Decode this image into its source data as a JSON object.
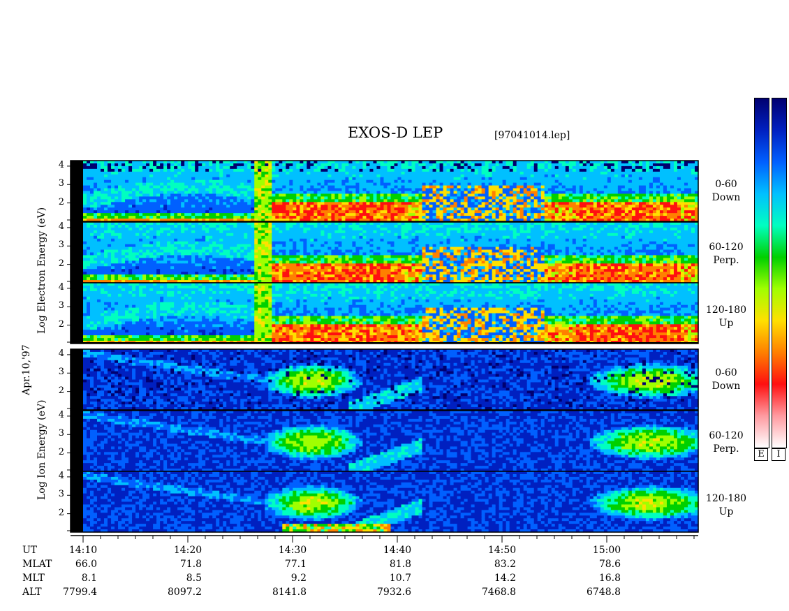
{
  "chart_data": {
    "type": "heatmap",
    "title": "EXOS-D LEP",
    "file_label": "[97041014.lep]",
    "date_label": "Apr.10,'97",
    "electron_ylabel": [
      "Log",
      "Electron",
      "Energy",
      "(eV)"
    ],
    "ion_ylabel": [
      "Log",
      "Ion",
      "Energy",
      "(eV)"
    ],
    "y_ticks": [
      "4",
      "3",
      "2"
    ],
    "ylim": [
      1,
      4.3
    ],
    "panels": [
      {
        "species": "Electron",
        "angle": "0-60",
        "dir": "Down"
      },
      {
        "species": "Electron",
        "angle": "60-120",
        "dir": "Perp."
      },
      {
        "species": "Electron",
        "angle": "120-180",
        "dir": "Up"
      },
      {
        "species": "Ion",
        "angle": "0-60",
        "dir": "Down"
      },
      {
        "species": "Ion",
        "angle": "60-120",
        "dir": "Perp."
      },
      {
        "species": "Ion",
        "angle": "120-180",
        "dir": "Up"
      }
    ],
    "x_row_labels": [
      "UT",
      "MLAT",
      "MLT",
      "ALT"
    ],
    "ut": [
      "14:10",
      "14:20",
      "14:30",
      "14:40",
      "14:50",
      "15:00"
    ],
    "mlat": [
      "66.0",
      "71.8",
      "77.1",
      "81.8",
      "83.2",
      "78.6"
    ],
    "mlt": [
      "8.1",
      "8.5",
      "9.2",
      "10.7",
      "14.2",
      "16.8"
    ],
    "alt": [
      "7799.4",
      "8097.2",
      "8141.8",
      "7932.6",
      "7468.8",
      "6748.8"
    ],
    "colorbar_labels": [
      "E",
      "I"
    ],
    "colorscale": [
      "#ffffff",
      "#ff9aa0",
      "#ff1010",
      "#ff8000",
      "#ffe000",
      "#a0ff00",
      "#00d000",
      "#00ffc0",
      "#00c0ff",
      "#0060ff",
      "#0020c0",
      "#000070"
    ]
  }
}
